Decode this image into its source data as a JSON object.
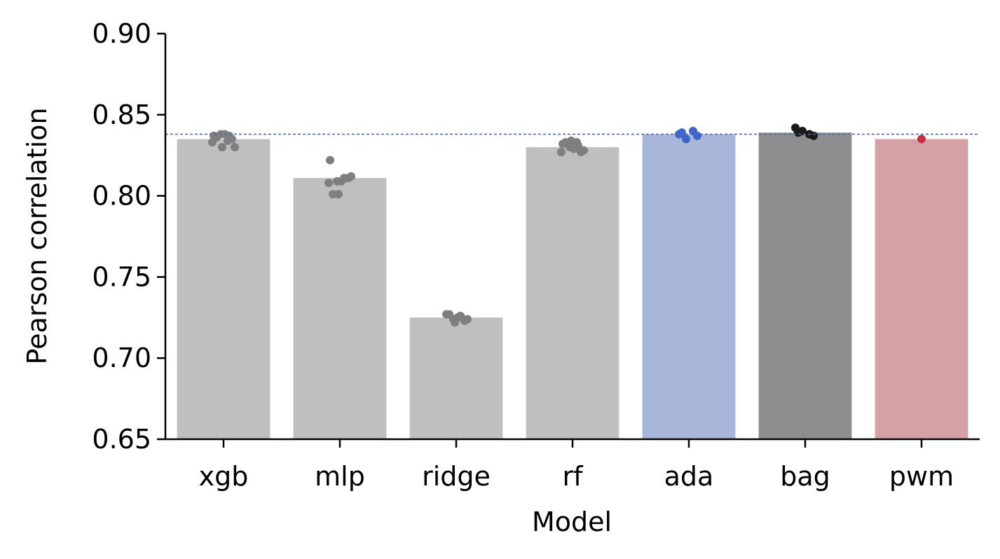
{
  "chart_data": {
    "type": "bar",
    "title": "",
    "xlabel": "Model",
    "ylabel": "Pearson correlation",
    "ylim": [
      0.65,
      0.9
    ],
    "yticks": [
      "0.65",
      "0.70",
      "0.75",
      "0.80",
      "0.85",
      "0.90"
    ],
    "categories": [
      "xgb",
      "mlp",
      "ridge",
      "rf",
      "ada",
      "bag",
      "pwm"
    ],
    "values": [
      0.835,
      0.811,
      0.725,
      0.83,
      0.838,
      0.839,
      0.835
    ],
    "bar_colors": [
      "#bfbfbf",
      "#bfbfbf",
      "#bfbfbf",
      "#bfbfbf",
      "#a8b6d9",
      "#8e8e8e",
      "#d4a1a6"
    ],
    "point_colors": [
      "#7f7f7f",
      "#7f7f7f",
      "#7f7f7f",
      "#7f7f7f",
      "#3f65c8",
      "#1a1a1a",
      "#c0323e"
    ],
    "points": [
      [
        0.837,
        0.834,
        0.838,
        0.835,
        0.836,
        0.838,
        0.83,
        0.83,
        0.833,
        0.837
      ],
      [
        0.822,
        0.811,
        0.809,
        0.811,
        0.801,
        0.809,
        0.801,
        0.812,
        0.808
      ],
      [
        0.727,
        0.726,
        0.724,
        0.723,
        0.727,
        0.725,
        0.722,
        0.724
      ],
      [
        0.832,
        0.833,
        0.83,
        0.827,
        0.833,
        0.829,
        0.834,
        0.828,
        0.827,
        0.831
      ],
      [
        0.838,
        0.84,
        0.835,
        0.837,
        0.839
      ],
      [
        0.842,
        0.838,
        0.84,
        0.837,
        0.839
      ],
      [
        0.835
      ]
    ],
    "reference_line": {
      "value": 0.838,
      "color": "#4a6bc8",
      "style": "dashed"
    },
    "grid": false,
    "legend": "none"
  }
}
